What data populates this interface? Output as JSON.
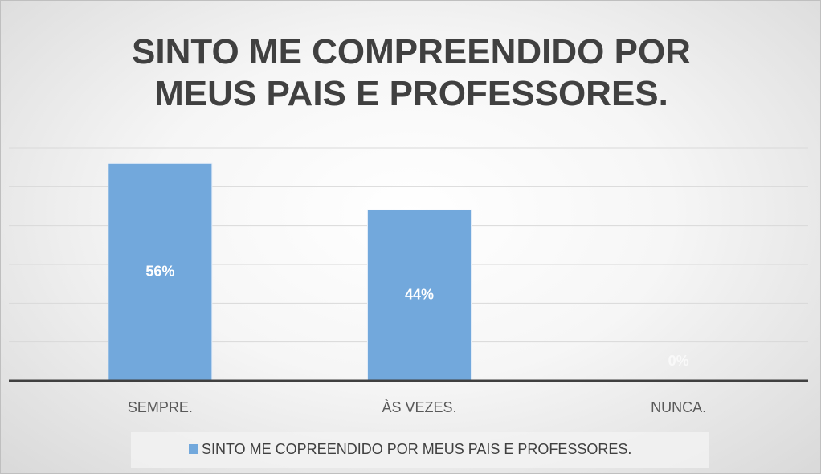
{
  "chart_data": {
    "type": "bar",
    "title": "SINTO ME COMPREENDIDO POR MEUS PAIS E PROFESSORES.",
    "categories": [
      "SEMPRE.",
      "ÀS VEZES.",
      "NUNCA."
    ],
    "series": [
      {
        "name": "SINTO ME COPREENDIDO POR MEUS PAIS E PROFESSORES.",
        "color": "#72a8dc",
        "values": [
          56,
          44,
          0
        ],
        "value_labels": [
          "56%",
          "44%",
          "0%"
        ]
      }
    ],
    "ylim": [
      0,
      60
    ],
    "yticks": [
      0,
      10,
      20,
      30,
      40,
      50,
      60
    ],
    "grid": true,
    "legend": "bottom"
  }
}
